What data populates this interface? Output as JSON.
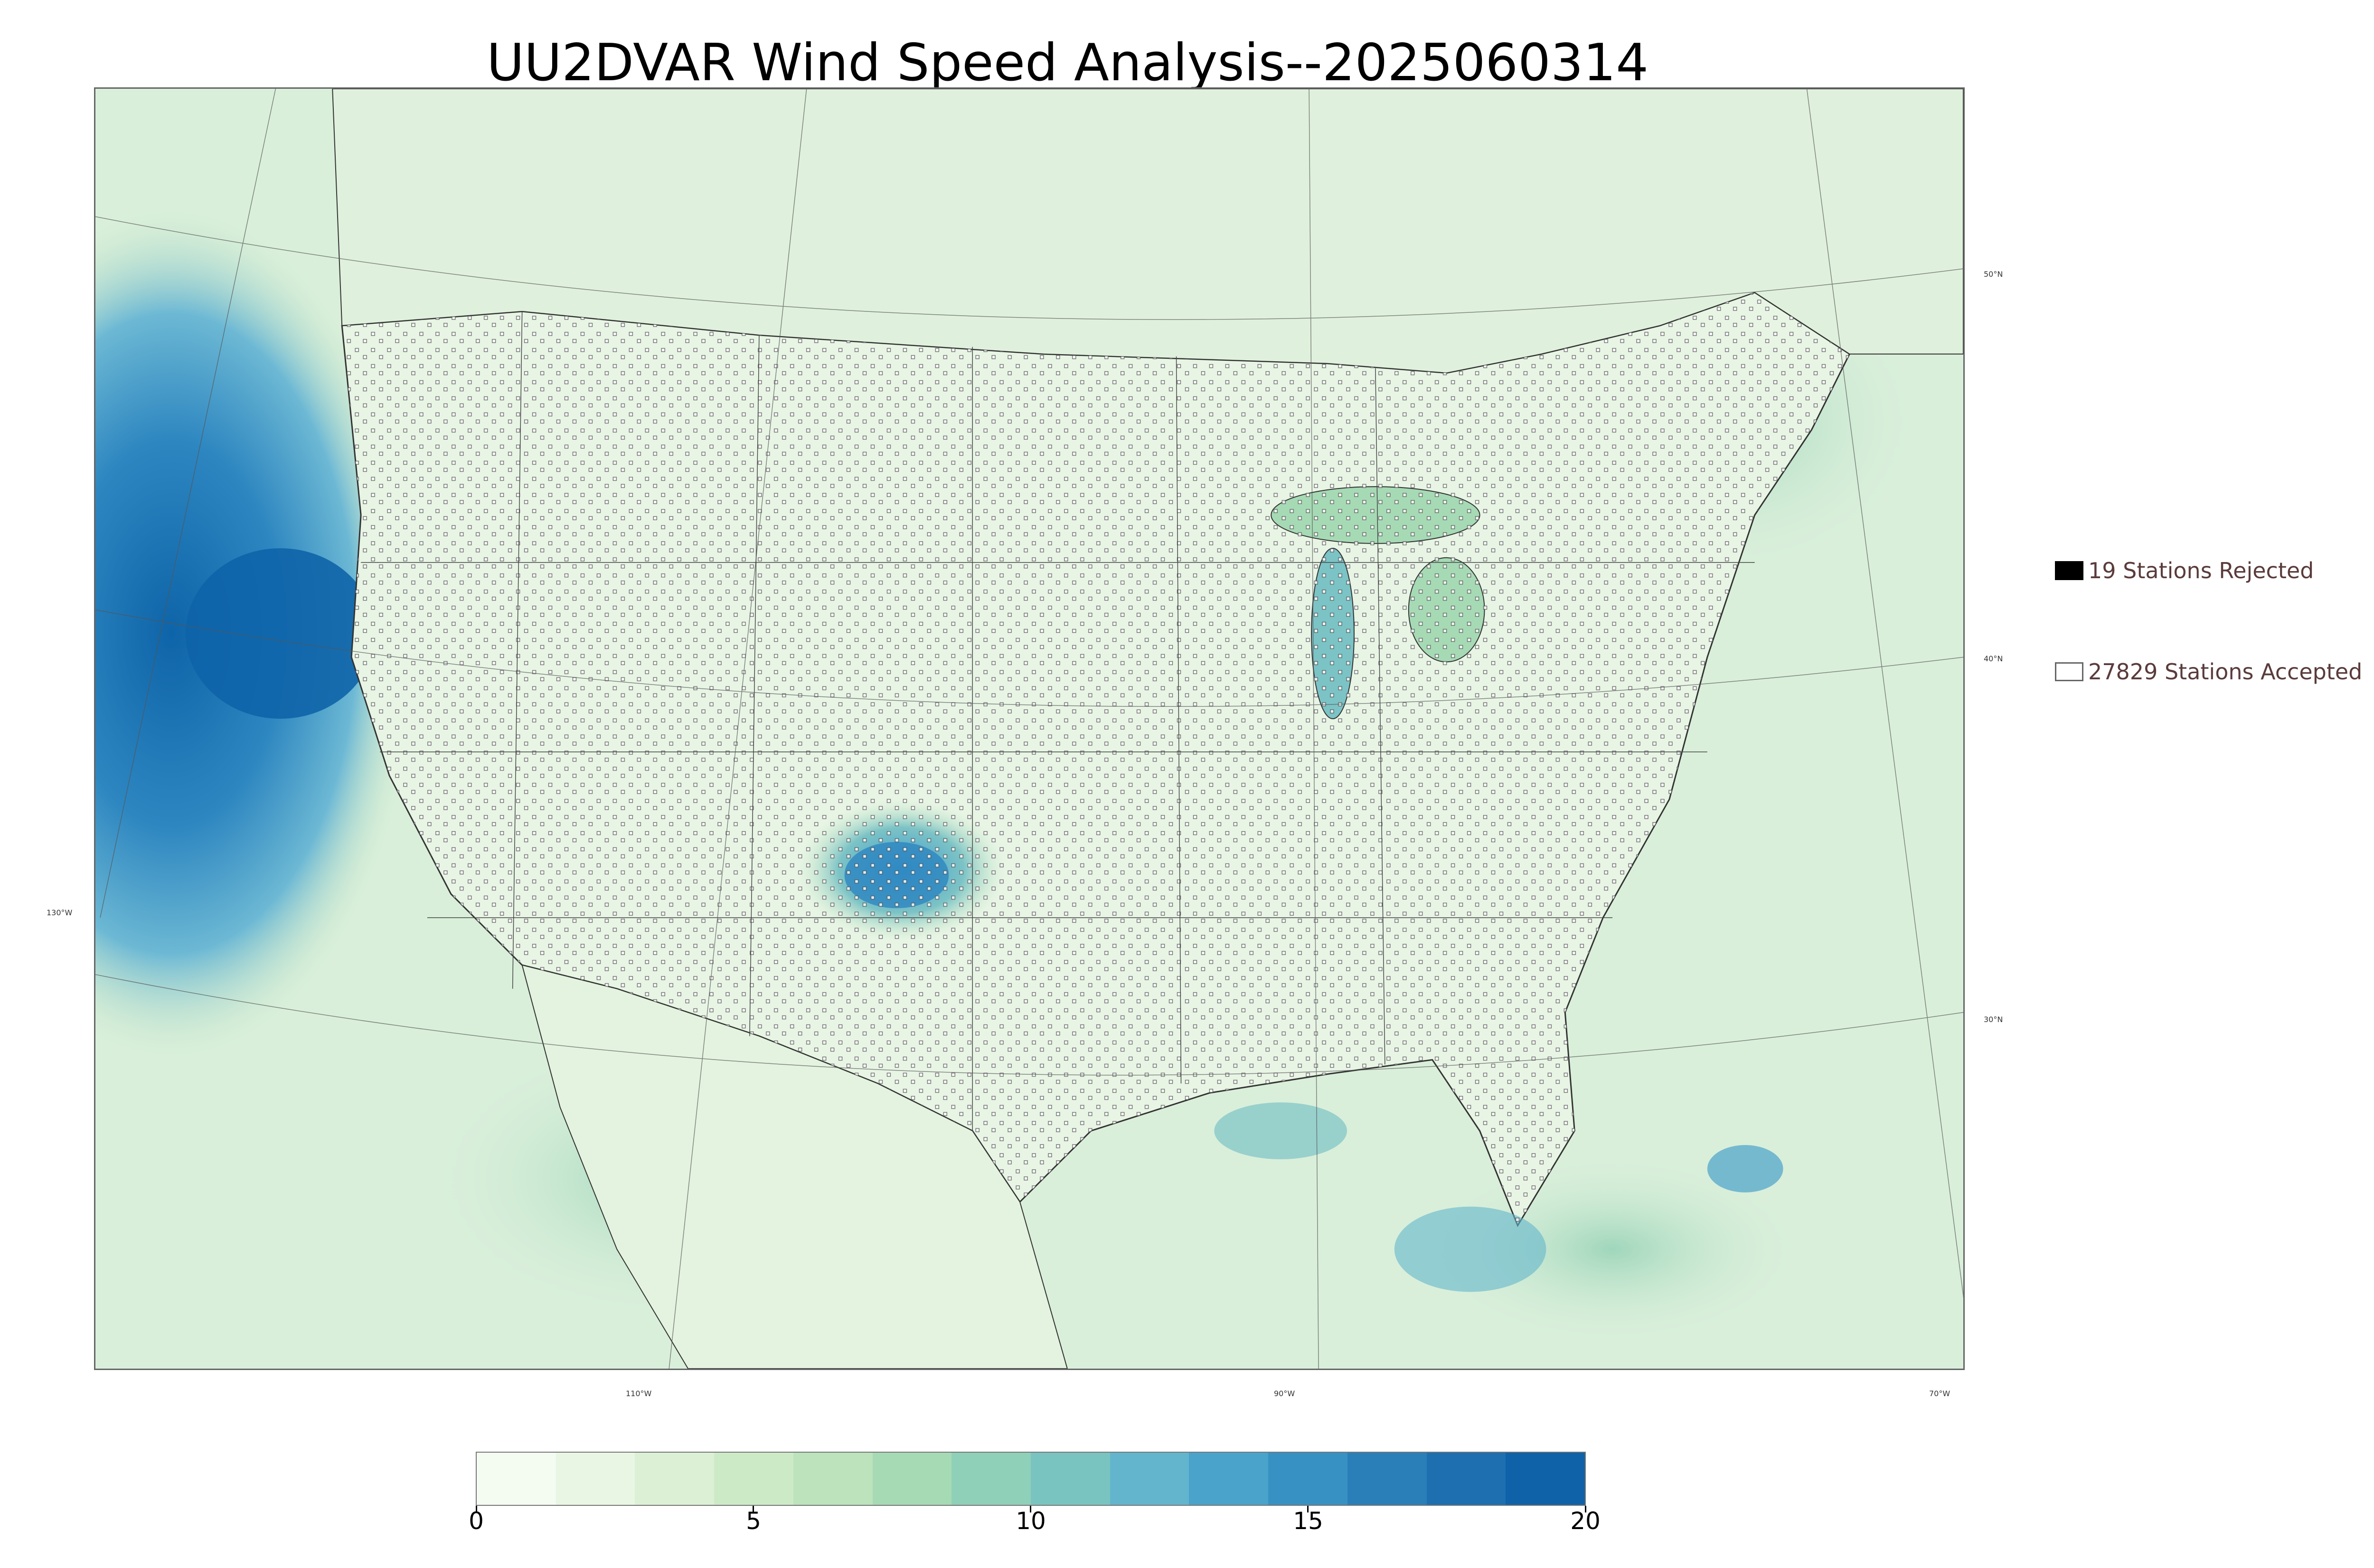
{
  "title": "UU2DVAR Wind Speed Analysis--2025060314",
  "map": {
    "region": "Continental United States",
    "ocean_color": "#d8eeda",
    "land_color": "#e6f4e4",
    "high_speed_color": "#0e64a8",
    "station_marker": "open square",
    "lat_labels": [
      "50°N",
      "40°N",
      "30°N"
    ],
    "lon_labels": [
      "130°W",
      "110°W",
      "90°W",
      "70°W"
    ]
  },
  "legend": {
    "rejected": {
      "label": "19 Stations Rejected",
      "color": "#000000"
    },
    "accepted": {
      "label": "27829 Stations Accepted",
      "color": "#ffffff"
    }
  },
  "colorbar": {
    "ticks": [
      "0",
      "5",
      "10",
      "15",
      "20"
    ],
    "colors": [
      "#f4fbf1",
      "#e9f6e4",
      "#dcf0d6",
      "#cdeac7",
      "#bce3bc",
      "#a6dab5",
      "#8fd0b8",
      "#79c4c0",
      "#62b5cc",
      "#4aa3cb",
      "#3891c3",
      "#2a7fb8",
      "#1d6fb0",
      "#0f62a8"
    ]
  },
  "chart_data": {
    "type": "heatmap",
    "title": "UU2DVAR Wind Speed Analysis--2025060314",
    "colorbar_range": [
      0,
      20
    ],
    "colorbar_ticks": [
      0,
      5,
      10,
      15,
      20
    ],
    "stations_rejected": 19,
    "stations_accepted": 27829
  }
}
